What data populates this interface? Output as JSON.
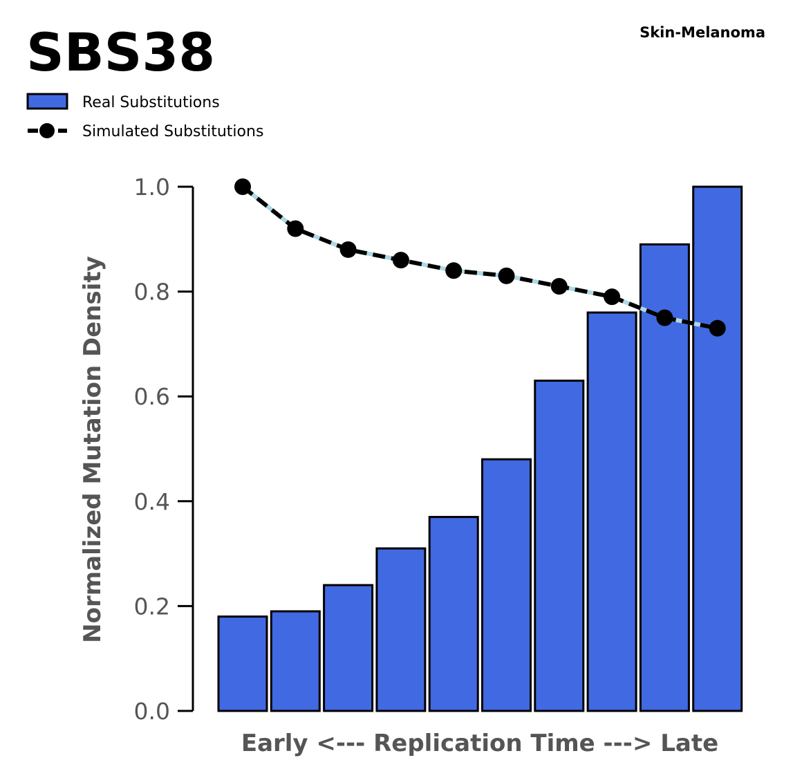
{
  "chart_data": {
    "type": "bar",
    "title": "SBS38",
    "subtitle": "Skin-Melanoma",
    "xlabel": "Early <--- Replication Time ---> Late",
    "ylabel": "Normalized Mutation Density",
    "ylim": [
      0,
      1.0
    ],
    "yticks": [
      "0.0",
      "0.2",
      "0.4",
      "0.6",
      "0.8",
      "1.0"
    ],
    "grid": false,
    "legend_position": "top-left",
    "series": [
      {
        "name": "Real Substitutions",
        "kind": "bar",
        "color": "#4169e1",
        "values": [
          0.18,
          0.19,
          0.24,
          0.31,
          0.37,
          0.48,
          0.63,
          0.76,
          0.89,
          1.0
        ]
      },
      {
        "name": "Simulated Substitutions",
        "kind": "line",
        "color": "#000000",
        "underline_color": "#add8e6",
        "values": [
          1.0,
          0.92,
          0.88,
          0.86,
          0.84,
          0.83,
          0.81,
          0.79,
          0.75,
          0.73
        ]
      }
    ]
  }
}
